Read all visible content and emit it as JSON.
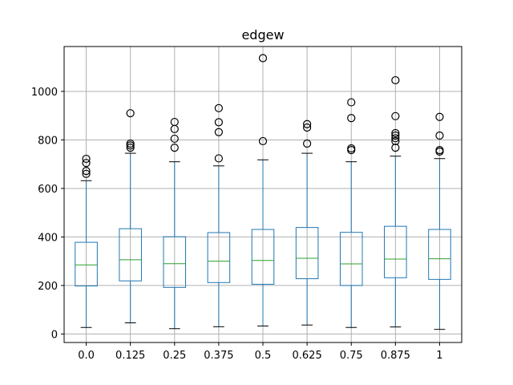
{
  "chart_data": {
    "type": "box",
    "title": "edgew",
    "xlabel": "",
    "ylabel": "",
    "ylim": [
      -35,
      1185
    ],
    "yticks": [
      0,
      200,
      400,
      600,
      800,
      1000
    ],
    "grid": true,
    "categories": [
      "0.0",
      "0.125",
      "0.25",
      "0.375",
      "0.5",
      "0.625",
      "0.75",
      "0.875",
      "1"
    ],
    "boxes": [
      {
        "whislo": 27,
        "q1": 198,
        "med": 285,
        "q3": 378,
        "whishi": 632,
        "fliers": [
          660,
          672,
          705,
          722
        ]
      },
      {
        "whislo": 46,
        "q1": 219,
        "med": 306,
        "q3": 434,
        "whishi": 745,
        "fliers": [
          768,
          777,
          785,
          910
        ]
      },
      {
        "whislo": 22,
        "q1": 192,
        "med": 290,
        "q3": 401,
        "whishi": 710,
        "fliers": [
          768,
          805,
          845,
          874
        ]
      },
      {
        "whislo": 30,
        "q1": 212,
        "med": 300,
        "q3": 418,
        "whishi": 693,
        "fliers": [
          724,
          832,
          873,
          931
        ]
      },
      {
        "whislo": 33,
        "q1": 205,
        "med": 303,
        "q3": 431,
        "whishi": 718,
        "fliers": [
          795,
          1137
        ]
      },
      {
        "whislo": 37,
        "q1": 228,
        "med": 312,
        "q3": 439,
        "whishi": 745,
        "fliers": [
          785,
          851,
          865
        ]
      },
      {
        "whislo": 27,
        "q1": 200,
        "med": 289,
        "q3": 419,
        "whishi": 710,
        "fliers": [
          758,
          765,
          890,
          955
        ]
      },
      {
        "whislo": 29,
        "q1": 232,
        "med": 309,
        "q3": 444,
        "whishi": 733,
        "fliers": [
          768,
          795,
          807,
          818,
          828,
          898,
          1046
        ]
      },
      {
        "whislo": 19,
        "q1": 225,
        "med": 310,
        "q3": 431,
        "whishi": 723,
        "fliers": [
          752,
          758,
          818,
          895
        ]
      }
    ],
    "colors": {
      "box": "#1f77b4",
      "median": "#2ca02c",
      "cap": "#000000",
      "grid": "#b0b0b0",
      "flier": "#000000"
    }
  }
}
